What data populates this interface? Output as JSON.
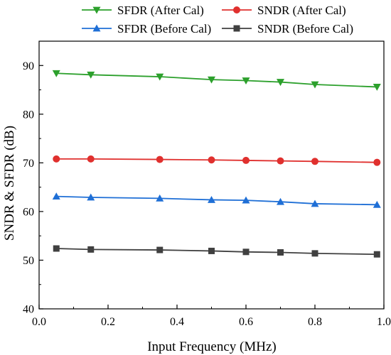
{
  "chart_data": {
    "type": "line",
    "title": "",
    "xlabel": "Input Frequency (MHz)",
    "ylabel": "SNDR & SFDR (dB)",
    "xlim": [
      0.0,
      1.0
    ],
    "ylim": [
      40,
      95
    ],
    "xticks": [
      0.0,
      0.2,
      0.4,
      0.6,
      0.8,
      1.0
    ],
    "xtick_labels": [
      "0.0",
      "0.2",
      "0.4",
      "0.6",
      "0.8",
      "1.0"
    ],
    "yticks": [
      40,
      50,
      60,
      70,
      80,
      90
    ],
    "ytick_labels": [
      "40",
      "50",
      "60",
      "70",
      "80",
      "90"
    ],
    "grid": false,
    "legend_position": "top",
    "x": [
      0.05,
      0.15,
      0.35,
      0.5,
      0.6,
      0.7,
      0.8,
      0.98
    ],
    "series": [
      {
        "name": "SFDR (After Cal)",
        "color": "#2ca02c",
        "marker": "triangle-down",
        "values": [
          88.4,
          88.1,
          87.7,
          87.1,
          86.9,
          86.6,
          86.1,
          85.6
        ]
      },
      {
        "name": "SNDR (After Cal)",
        "color": "#e0302e",
        "marker": "circle",
        "values": [
          70.8,
          70.8,
          70.7,
          70.6,
          70.5,
          70.4,
          70.3,
          70.1
        ]
      },
      {
        "name": "SFDR (Before Cal)",
        "color": "#1f6fd6",
        "marker": "triangle-up",
        "values": [
          63.1,
          62.9,
          62.7,
          62.4,
          62.3,
          62.0,
          61.6,
          61.4
        ]
      },
      {
        "name": "SNDR (Before Cal)",
        "color": "#404040",
        "marker": "square",
        "values": [
          52.4,
          52.2,
          52.1,
          51.9,
          51.7,
          51.6,
          51.4,
          51.2
        ]
      }
    ]
  }
}
